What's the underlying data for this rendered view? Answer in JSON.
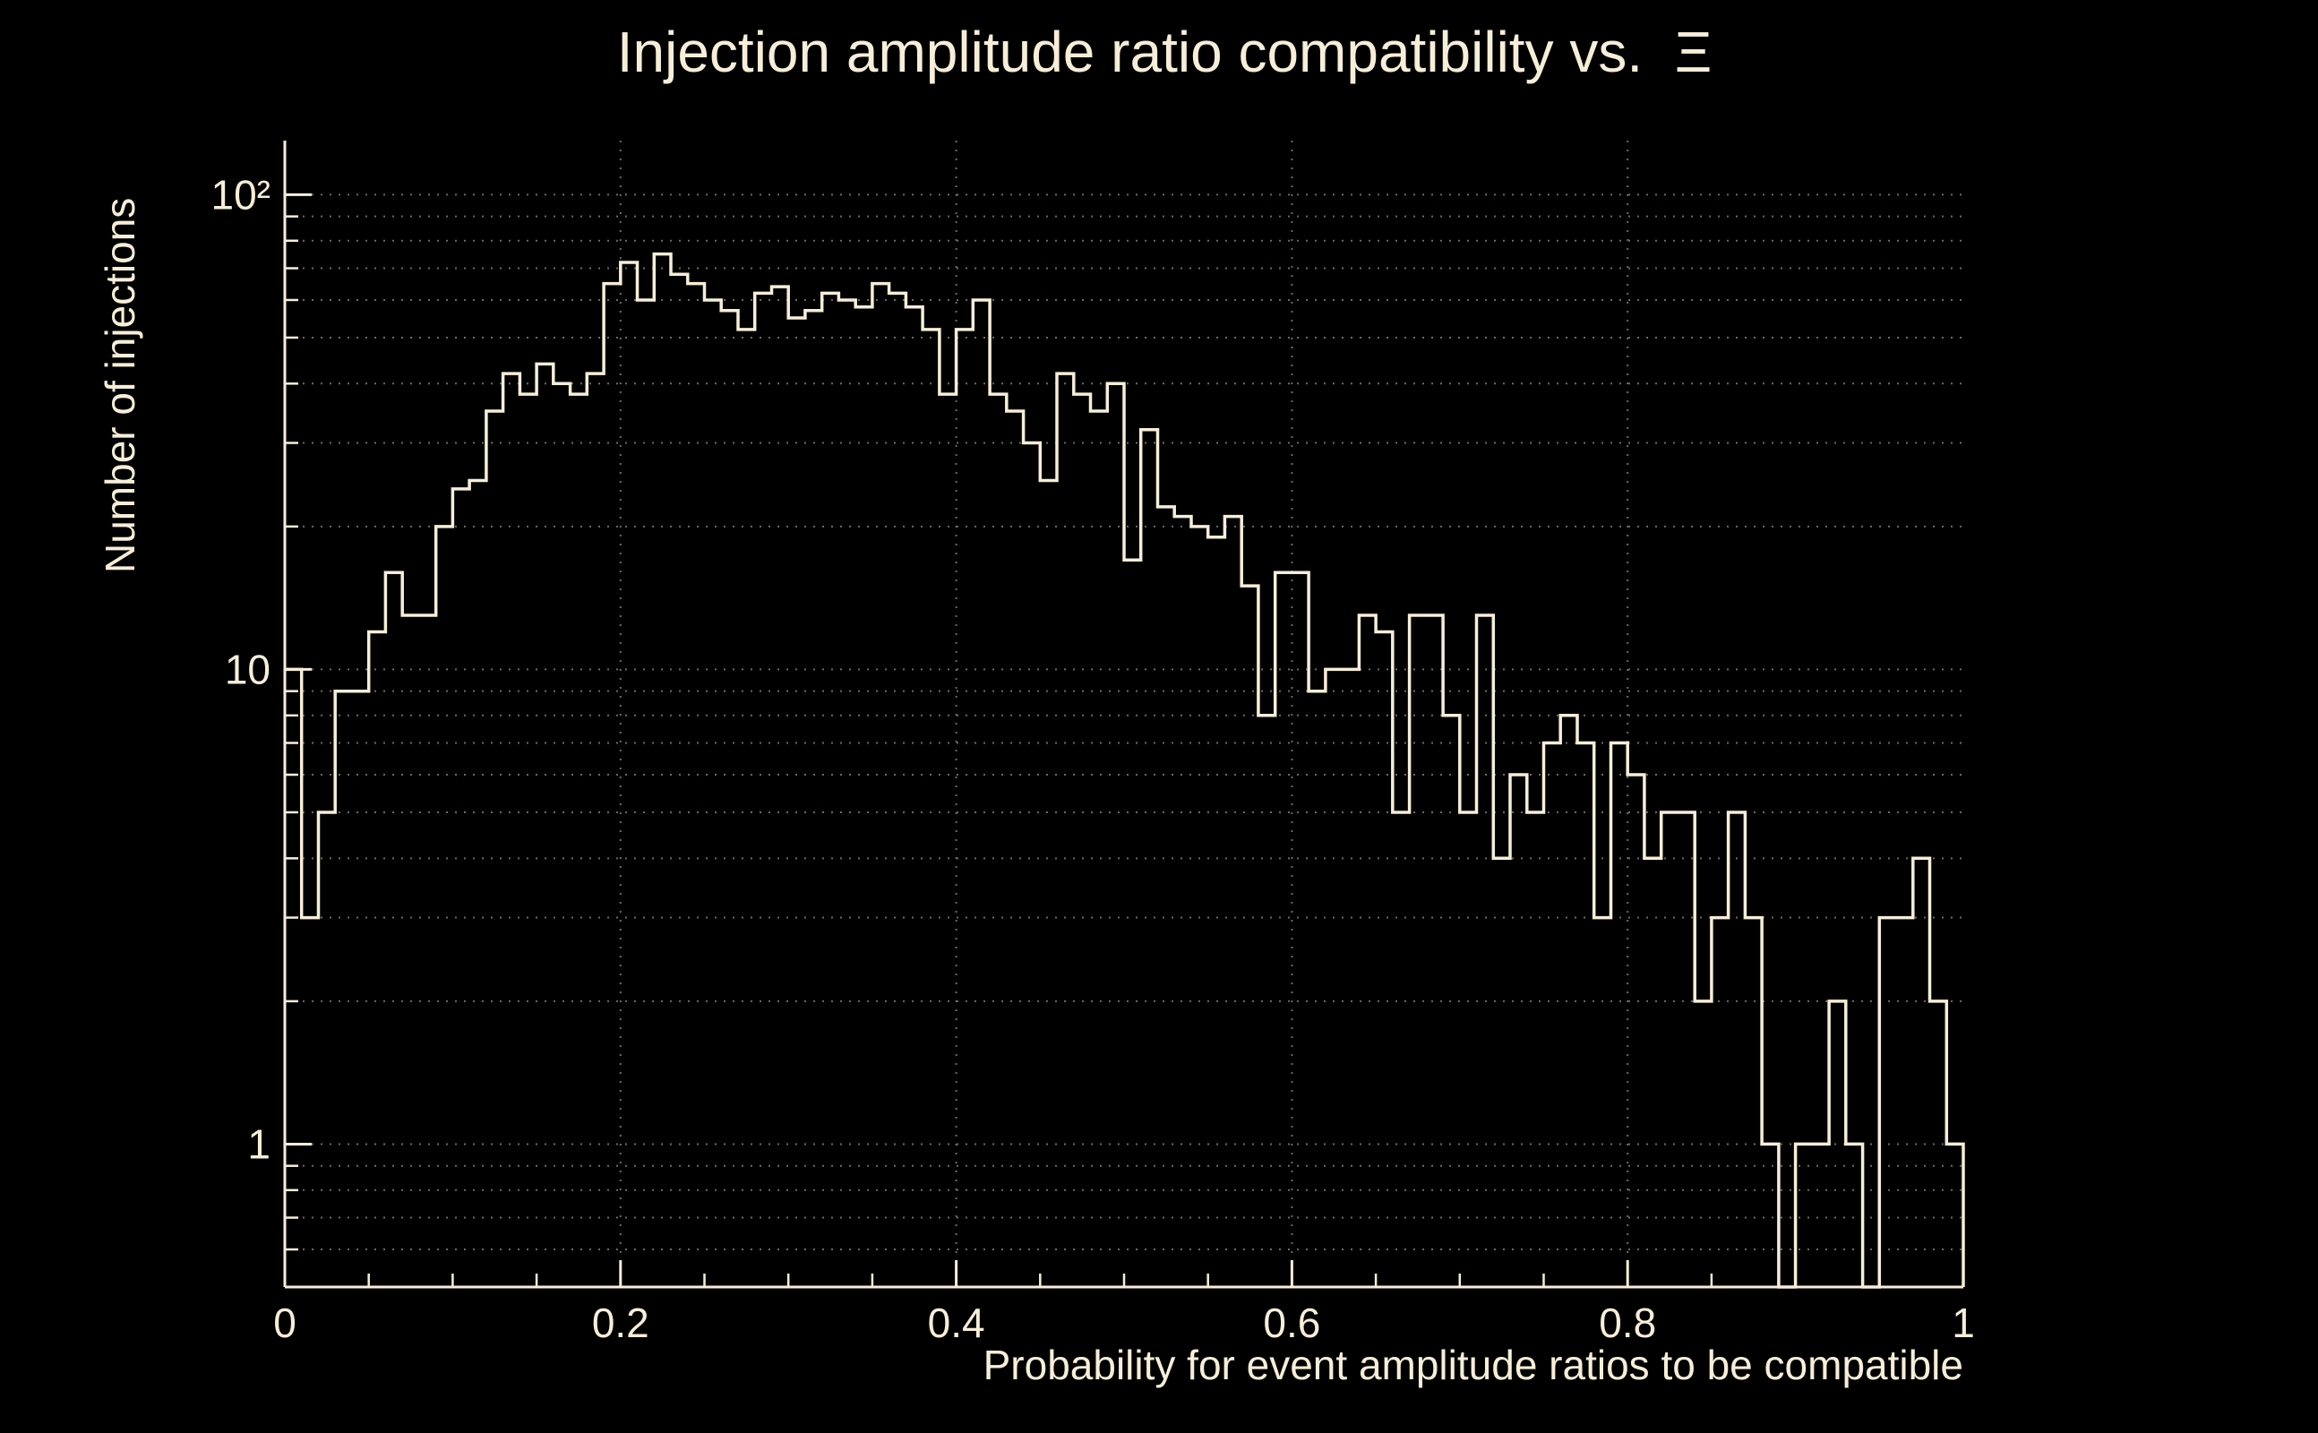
{
  "chart_data": {
    "type": "bar",
    "style": "step-outline-histogram",
    "title": "Injection amplitude ratio compatibility vs.  Ξ",
    "xlabel": "Probability for event amplitude ratios to be compatible",
    "ylabel": "Number of injections",
    "yscale": "log",
    "xlim": [
      0,
      1
    ],
    "ylim": [
      0.5,
      130
    ],
    "bin_start": 0,
    "bin_width": 0.01,
    "counts": [
      10,
      3,
      5,
      9,
      9,
      12,
      16,
      13,
      13,
      20,
      24,
      25,
      35,
      42,
      38,
      44,
      40,
      38,
      42,
      65,
      72,
      60,
      75,
      68,
      65,
      60,
      57,
      52,
      62,
      64,
      55,
      57,
      62,
      60,
      58,
      65,
      62,
      58,
      52,
      38,
      52,
      60,
      38,
      35,
      30,
      25,
      42,
      38,
      35,
      40,
      17,
      32,
      22,
      21,
      20,
      19,
      21,
      15,
      8,
      16,
      16,
      9,
      10,
      10,
      13,
      12,
      5,
      13,
      13,
      8,
      5,
      13,
      4,
      6,
      5,
      7,
      8,
      7,
      3,
      7,
      6,
      4,
      5,
      5,
      2,
      3,
      5,
      3,
      1,
      0,
      1,
      1,
      2,
      1,
      0,
      3,
      3,
      4,
      2,
      1
    ],
    "x_ticks": [
      {
        "v": 0,
        "label": "0"
      },
      {
        "v": 0.2,
        "label": "0.2"
      },
      {
        "v": 0.4,
        "label": "0.4"
      },
      {
        "v": 0.6,
        "label": "0.6"
      },
      {
        "v": 0.8,
        "label": "0.8"
      },
      {
        "v": 1,
        "label": "1"
      }
    ],
    "x_minor_step": 0.05,
    "y_ticks": [
      {
        "v": 1,
        "label": "1"
      },
      {
        "v": 10,
        "label": "10"
      },
      {
        "v": 100,
        "label": "10²"
      }
    ],
    "x_gridlines": [
      0.2,
      0.4,
      0.6,
      0.8
    ],
    "grid_on": true,
    "legend": "none",
    "colors": {
      "background": "#000000",
      "foreground": "#f7eed8",
      "line": "#f7eed8",
      "grid": "#6f6a5e"
    }
  }
}
